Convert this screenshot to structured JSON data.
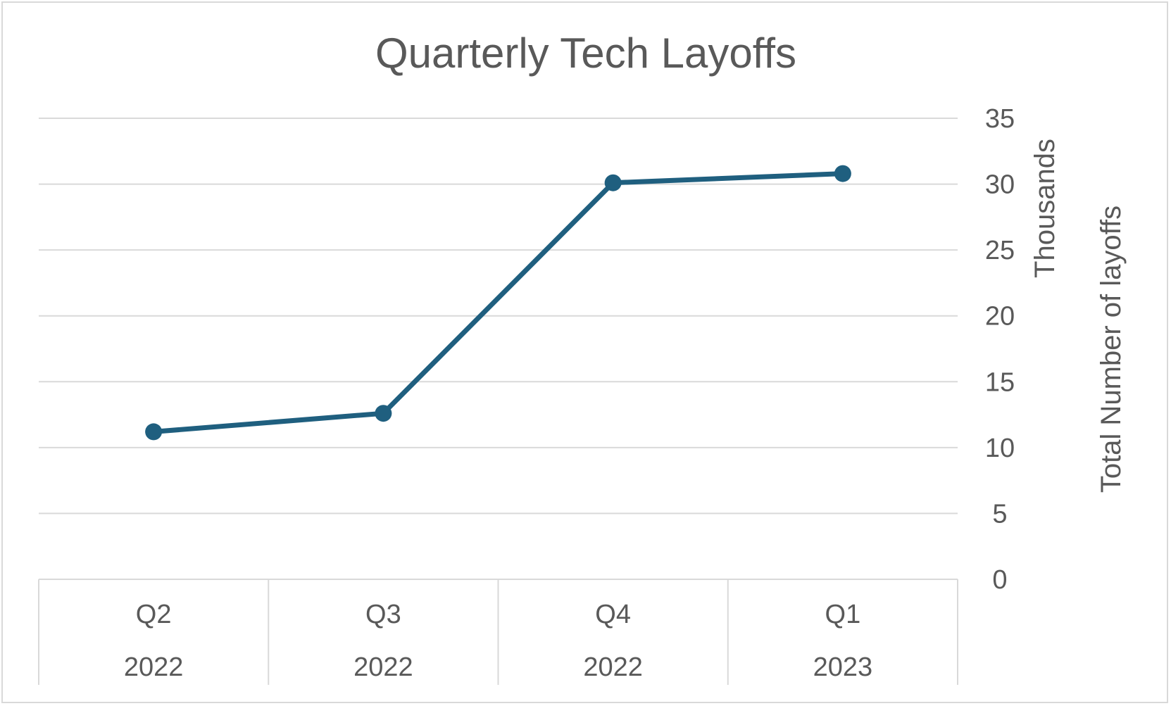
{
  "chart_data": {
    "type": "line",
    "title": "Quarterly Tech Layoffs",
    "categories": [
      {
        "quarter": "Q2",
        "year": "2022"
      },
      {
        "quarter": "Q3",
        "year": "2022"
      },
      {
        "quarter": "Q4",
        "year": "2022"
      },
      {
        "quarter": "Q1",
        "year": "2023"
      }
    ],
    "values": [
      11.2,
      12.6,
      30.1,
      30.8
    ],
    "yticks": [
      "0",
      "5",
      "10",
      "15",
      "20",
      "25",
      "30",
      "35"
    ],
    "ylim": [
      0,
      35
    ],
    "ylabel": "Total Number of layoffs",
    "yunit": "Thousands",
    "y_axis_side": "right",
    "grid": true,
    "legend": "none",
    "colors": {
      "line": "#1f5f7f",
      "grid": "#d9d9d9",
      "text": "#595959"
    }
  }
}
